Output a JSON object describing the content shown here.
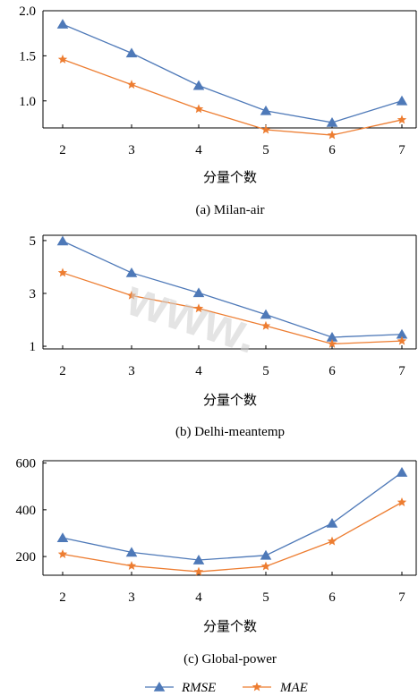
{
  "legend": {
    "position": "bottom",
    "items": [
      {
        "label": "RMSE",
        "color": "#4e79b8",
        "marker": "triangle"
      },
      {
        "label": "MAE",
        "color": "#ed7d31",
        "marker": "star"
      }
    ]
  },
  "watermark": "www.",
  "chart_data": [
    {
      "type": "line",
      "caption": "(a) Milan-air",
      "xlabel": "分量个数",
      "x": [
        2,
        3,
        4,
        5,
        6,
        7
      ],
      "ylim": [
        0.7,
        2.0
      ],
      "yticks": [
        1.0,
        1.5,
        2.0
      ],
      "ytick_labels": [
        "1.0",
        "1.5",
        "2.0"
      ],
      "series": [
        {
          "name": "RMSE",
          "values": [
            1.85,
            1.53,
            1.17,
            0.89,
            0.76,
            1.0
          ]
        },
        {
          "name": "MAE",
          "values": [
            1.46,
            1.18,
            0.91,
            0.68,
            0.62,
            0.79
          ]
        }
      ]
    },
    {
      "type": "line",
      "caption": "(b) Delhi-meantemp",
      "xlabel": "分量个数",
      "x": [
        2,
        3,
        4,
        5,
        6,
        7
      ],
      "ylim": [
        0.9,
        5.2
      ],
      "yticks": [
        1,
        3,
        5
      ],
      "ytick_labels": [
        "1",
        "3",
        "5"
      ],
      "series": [
        {
          "name": "RMSE",
          "values": [
            4.98,
            3.78,
            3.02,
            2.2,
            1.34,
            1.45
          ]
        },
        {
          "name": "MAE",
          "values": [
            3.78,
            2.92,
            2.43,
            1.77,
            1.09,
            1.2
          ]
        }
      ]
    },
    {
      "type": "line",
      "caption": "(c) Global-power",
      "xlabel": "分量个数",
      "x": [
        2,
        3,
        4,
        5,
        6,
        7
      ],
      "ylim": [
        120,
        610
      ],
      "yticks": [
        200,
        400,
        600
      ],
      "ytick_labels": [
        "200",
        "400",
        "600"
      ],
      "series": [
        {
          "name": "RMSE",
          "values": [
            280,
            218,
            185,
            205,
            342,
            560
          ]
        },
        {
          "name": "MAE",
          "values": [
            210,
            160,
            135,
            158,
            265,
            432
          ]
        }
      ]
    }
  ]
}
